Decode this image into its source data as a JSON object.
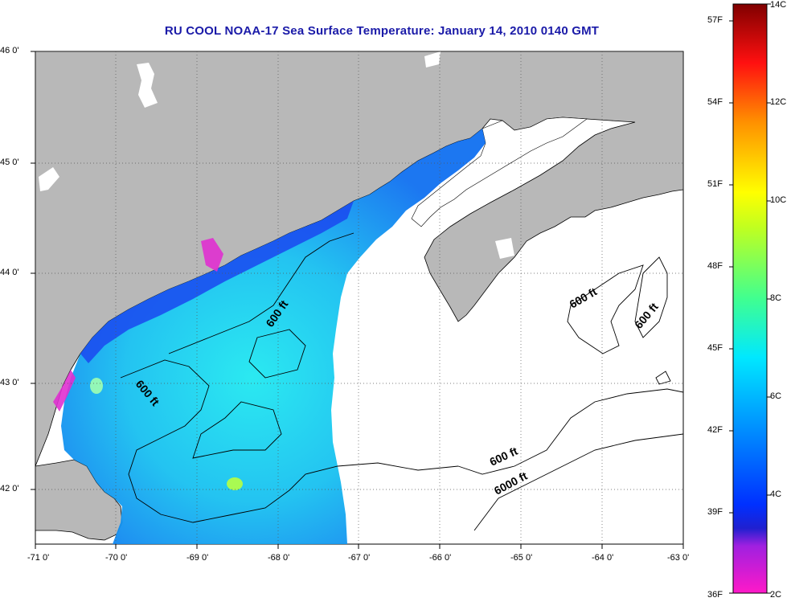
{
  "title": "RU COOL  NOAA-17  Sea Surface Temperature:  January 14, 2010 0140 GMT",
  "map": {
    "lon_range": [
      -71,
      -63
    ],
    "lat_range": [
      41.5,
      46
    ],
    "lon_ticks": [
      "-71 0'",
      "-70 0'",
      "-69 0'",
      "-68 0'",
      "-67 0'",
      "-66 0'",
      "-65 0'",
      "-64 0'",
      "-63 0'"
    ],
    "lat_ticks": [
      "46 0'",
      "45 0'",
      "44 0'",
      "43 0'",
      "42 0'"
    ],
    "contour_labels": [
      "600 ft",
      "600 ft",
      "600 ft",
      "600 ft",
      "600 ft",
      "6000 ft"
    ],
    "colors": {
      "land": "#b8b8b8",
      "water_nodata": "#ffffff",
      "coast": "#000000"
    }
  },
  "colorbar": {
    "fahrenheit_ticks": [
      "57F",
      "54F",
      "51F",
      "48F",
      "45F",
      "42F",
      "39F",
      "36F"
    ],
    "celsius_ticks": [
      "14C",
      "12C",
      "10C",
      "8C",
      "6C",
      "4C",
      "2C"
    ],
    "range_c": [
      2,
      14
    ]
  }
}
